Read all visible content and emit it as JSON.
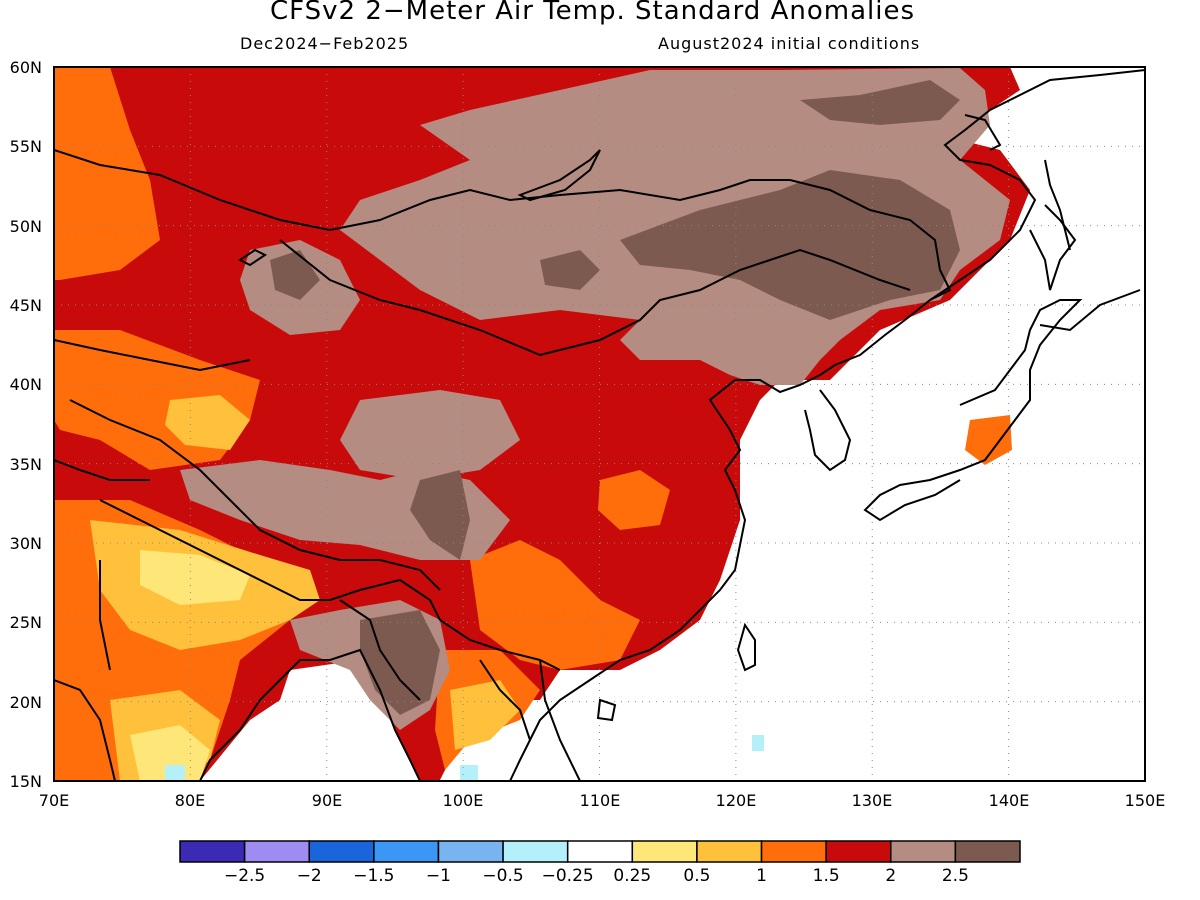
{
  "title": "CFSv2 2−Meter Air Temp. Standard Anomalies",
  "valid_period": "Dec2024−Feb2025",
  "initial_conditions": "August2024 initial conditions",
  "lat_labels": [
    "60N",
    "55N",
    "50N",
    "45N",
    "40N",
    "35N",
    "30N",
    "25N",
    "20N",
    "15N"
  ],
  "lon_labels": [
    "70E",
    "80E",
    "90E",
    "100E",
    "110E",
    "120E",
    "130E",
    "140E",
    "150E"
  ],
  "colorbar": {
    "colors": [
      "#3a2ab4",
      "#9f8cf2",
      "#1a64dc",
      "#3c96f5",
      "#78b4f0",
      "#b4f0fa",
      "#ffffff",
      "#ffe678",
      "#ffc03c",
      "#ff6e0a",
      "#c80a0a",
      "#b48c82",
      "#7d5a50"
    ],
    "labels": [
      "−2.5",
      "−2",
      "−1.5",
      "−1",
      "−0.5",
      "−0.25",
      "0.25",
      "0.5",
      "1",
      "1.5",
      "2",
      "2.5"
    ]
  },
  "chart_data": {
    "type": "heatmap",
    "title": "CFSv2 2−Meter Air Temp. Standard Anomalies",
    "subtitle": "Dec2024−Feb2025 / August2024 initial conditions",
    "xlim": [
      70,
      150
    ],
    "ylim": [
      15,
      60
    ],
    "x_ticks": [
      70,
      80,
      90,
      100,
      110,
      120,
      130,
      140,
      150
    ],
    "y_ticks": [
      15,
      20,
      25,
      30,
      35,
      40,
      45,
      50,
      55,
      60
    ],
    "levels": [
      -2.5,
      -2,
      -1.5,
      -1,
      -0.5,
      -0.25,
      0.25,
      0.5,
      1,
      1.5,
      2,
      2.5
    ],
    "grid": true
  }
}
